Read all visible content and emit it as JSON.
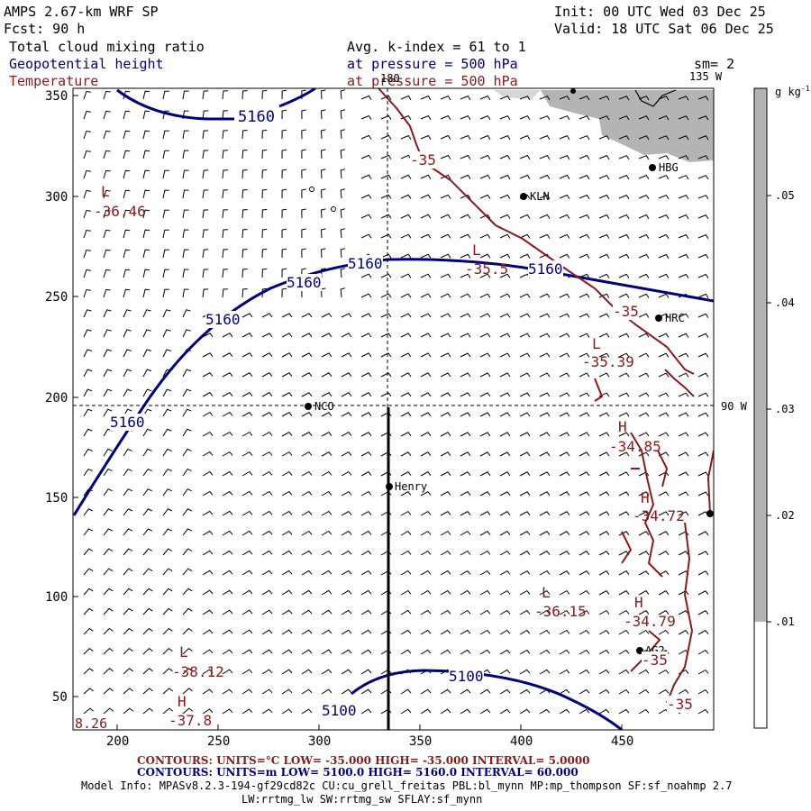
{
  "header": {
    "model_title": "AMPS 2.67-km WRF SP",
    "forecast": "Fcst:   90 h",
    "init": "Init: 00 UTC Wed 03 Dec 25",
    "valid": "Valid: 18 UTC Sat 06 Dec 25",
    "field1": "Total cloud mixing ratio",
    "field2": "Geopotential height",
    "field3": "Temperature",
    "avg": "Avg. k-index =  61 to   1",
    "pressure1": "at pressure =  500 hPa",
    "pressure2": "at pressure =  500 hPa",
    "sm": "sm= 2"
  },
  "axes": {
    "x_ticks": [
      "200",
      "250",
      "300",
      "350",
      "400",
      "450"
    ],
    "y_ticks": [
      "350",
      "300",
      "250",
      "200",
      "150",
      "100",
      "50"
    ],
    "lon_top": "180",
    "lon_135": "135 W",
    "lon_90": "90 W"
  },
  "colorbar": {
    "unit_label": "g kg",
    "unit_sup": "-1",
    "ticks": [
      ".05",
      ".04",
      ".03",
      ".02",
      ".01"
    ]
  },
  "stations": [
    {
      "name": "HBG"
    },
    {
      "name": "KLN"
    },
    {
      "name": "HRC"
    },
    {
      "name": "NCO"
    },
    {
      "name": "Henry"
    },
    {
      "name": "AG2"
    }
  ],
  "contour_labels": {
    "height": [
      "5160",
      "5160",
      "5160",
      "5160",
      "5160",
      "5160",
      "5100",
      "5100"
    ],
    "temperature": [
      "-35",
      "-35",
      "-35",
      "-35"
    ],
    "lows": [
      {
        "letter": "L",
        "value": "-36.46"
      },
      {
        "letter": "L",
        "value": "-35.5"
      },
      {
        "letter": "L",
        "value": "-35.39"
      },
      {
        "letter": "L",
        "value": "-36.15"
      },
      {
        "letter": "L",
        "value": "-38.12"
      }
    ],
    "highs": [
      {
        "letter": "H",
        "value": "-34.85"
      },
      {
        "letter": "H",
        "value": "-34.72"
      },
      {
        "letter": "H",
        "value": "-34.79"
      },
      {
        "letter": "H",
        "value": "-37.8"
      }
    ],
    "edge_value": "8.26"
  },
  "footer": {
    "temp_contours": "CONTOURS:  UNITS=°C  LOW=  -35.000      HIGH=  -35.000      INTERVAL=    5.0000",
    "height_contours": "CONTOURS:  UNITS=m   LOW=  5100.0       HIGH=  5160.0       INTERVAL=   60.000",
    "model_info": "Model Info: MPASv8.2.3-194-gf29cd82c CU:cu_grell_freitas PBL:bl_mynn MP:mp_thompson SF:sf_noahmp 2.7",
    "model_info2": "LW:rrtmg_lw SW:rrtmg_sw SFLAY:sf_mynn"
  },
  "colors": {
    "height_contour": "#00007f",
    "temperature_contour": "#8b1a1a",
    "cloud_fill": "#b4b4b4"
  }
}
